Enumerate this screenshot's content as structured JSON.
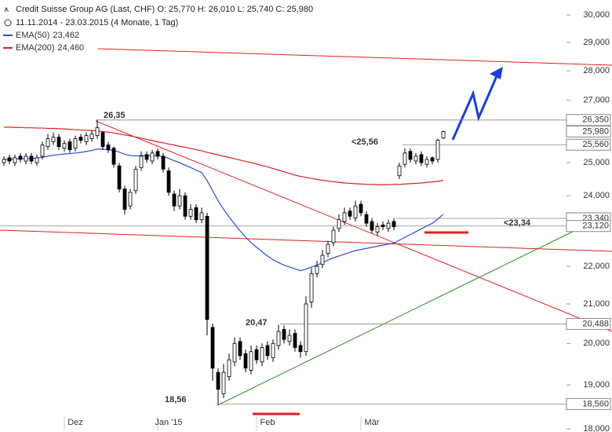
{
  "chart_data": {
    "type": "candlestick",
    "title": "Credit Suisse Group AG (Last, CHF)  O: 25,770  H: 26,010  L: 25,740  C: 25,980",
    "subtitle": "11.11.2014 - 23.03.2015 (4 Monate, 1 Tag)",
    "log_scale": true,
    "ylim": [
      18,
      30
    ],
    "yticks": [
      {
        "value": 30,
        "label": "30,000"
      },
      {
        "value": 29,
        "label": "29,000"
      },
      {
        "value": 28,
        "label": "28,000"
      },
      {
        "value": 27,
        "label": "27,000"
      },
      {
        "value": 25,
        "label": "25,000"
      },
      {
        "value": 24,
        "label": "24,000"
      },
      {
        "value": 22,
        "label": "22,000"
      },
      {
        "value": 21,
        "label": "21,000"
      },
      {
        "value": 20,
        "label": "20,000"
      },
      {
        "value": 19,
        "label": "19,000"
      },
      {
        "value": 18,
        "label": "18,000"
      }
    ],
    "categories": [
      null,
      null,
      null,
      null,
      null,
      null,
      null,
      null,
      null,
      null,
      null,
      null,
      null,
      "Dez",
      null,
      null,
      null,
      null,
      null,
      null,
      null,
      null,
      null,
      null,
      null,
      null,
      null,
      null,
      null,
      null,
      "Jan '15",
      null,
      null,
      null,
      null,
      null,
      null,
      null,
      null,
      null,
      null,
      null,
      null,
      null,
      null,
      null,
      null,
      null,
      "Feb",
      null,
      null,
      null,
      null,
      null,
      null,
      null,
      null,
      null,
      null,
      null,
      null,
      null,
      null,
      null,
      null,
      null,
      null,
      "Mär",
      null,
      null,
      null,
      null,
      null,
      null,
      null,
      null,
      null,
      null,
      null,
      null,
      null
    ],
    "open": [
      25.0,
      25.15,
      25.0,
      25.2,
      25.05,
      25.2,
      25.0,
      25.2,
      25.5,
      25.65,
      25.8,
      25.45,
      25.65,
      25.45,
      25.8,
      25.65,
      25.75,
      25.85,
      25.95,
      25.55,
      25.45,
      24.9,
      24.2,
      23.7,
      24.15,
      24.85,
      25.25,
      25.05,
      25.35,
      25.2,
      24.75,
      24.05,
      23.7,
      24.0,
      23.4,
      23.65,
      23.3,
      23.4,
      20.4,
      19.3,
      18.8,
      19.2,
      19.55,
      20.05,
      19.75,
      19.35,
      19.85,
      19.55,
      19.95,
      19.65,
      19.95,
      20.35,
      20.05,
      20.25,
      19.95,
      19.8,
      21.05,
      21.8,
      22.05,
      22.35,
      22.65,
      23.05,
      23.25,
      23.55,
      23.35,
      23.75,
      23.45,
      23.25,
      22.95,
      23.15,
      23.05,
      23.25,
      24.6,
      24.95,
      25.35,
      25.05,
      25.25,
      24.95,
      25.15,
      25.1,
      25.77
    ],
    "high": [
      25.2,
      25.25,
      25.25,
      25.3,
      25.3,
      25.3,
      25.25,
      25.65,
      25.9,
      25.95,
      25.9,
      25.7,
      25.75,
      25.85,
      25.9,
      25.95,
      26.0,
      26.35,
      26.0,
      25.65,
      25.5,
      25.0,
      24.3,
      24.2,
      24.9,
      25.35,
      25.35,
      25.4,
      25.45,
      25.3,
      24.85,
      24.15,
      24.2,
      24.1,
      23.75,
      23.75,
      23.65,
      23.5,
      20.5,
      19.4,
      19.5,
      19.75,
      20.15,
      20.15,
      19.85,
      19.95,
      19.95,
      20.0,
      20.05,
      20.1,
      20.47,
      20.45,
      20.35,
      20.35,
      20.05,
      21.2,
      21.95,
      22.15,
      22.45,
      22.7,
      23.1,
      23.45,
      23.65,
      23.65,
      23.85,
      23.85,
      23.55,
      23.35,
      23.2,
      23.25,
      23.3,
      23.35,
      25.0,
      25.45,
      25.45,
      25.3,
      25.35,
      25.2,
      25.2,
      25.75,
      26.01
    ],
    "low": [
      24.9,
      24.95,
      24.9,
      25.0,
      24.95,
      24.95,
      24.9,
      25.1,
      25.4,
      25.55,
      25.4,
      25.35,
      25.3,
      25.35,
      25.6,
      25.55,
      25.65,
      25.75,
      25.4,
      25.3,
      24.85,
      24.1,
      23.45,
      23.6,
      24.05,
      24.75,
      25.0,
      24.95,
      25.1,
      24.7,
      24.0,
      23.55,
      23.6,
      23.3,
      23.3,
      23.2,
      23.2,
      20.2,
      19.1,
      18.56,
      18.7,
      19.1,
      19.45,
      19.6,
      19.3,
      19.25,
      19.5,
      19.45,
      19.6,
      19.55,
      19.85,
      20.0,
      19.95,
      19.8,
      19.65,
      19.7,
      20.9,
      21.7,
      21.95,
      22.25,
      22.55,
      22.95,
      23.15,
      23.3,
      23.25,
      23.4,
      23.1,
      22.9,
      22.85,
      23.0,
      22.95,
      23.0,
      24.5,
      24.85,
      25.0,
      24.95,
      24.9,
      24.85,
      24.95,
      25.0,
      25.74
    ],
    "close": [
      25.1,
      25.05,
      25.15,
      25.1,
      25.2,
      25.05,
      25.15,
      25.55,
      25.75,
      25.8,
      25.5,
      25.6,
      25.4,
      25.75,
      25.7,
      25.85,
      25.9,
      26.1,
      25.5,
      25.4,
      24.95,
      24.2,
      23.6,
      24.1,
      24.8,
      25.2,
      25.1,
      25.3,
      25.2,
      24.8,
      24.1,
      23.7,
      24.0,
      23.4,
      23.6,
      23.3,
      23.5,
      20.6,
      19.4,
      18.9,
      19.3,
      19.6,
      20.0,
      19.7,
      19.4,
      19.8,
      19.6,
      19.9,
      19.7,
      20.0,
      20.3,
      20.1,
      20.2,
      19.9,
      19.8,
      21.0,
      21.8,
      22.0,
      22.3,
      22.6,
      23.0,
      23.3,
      23.5,
      23.4,
      23.7,
      23.5,
      23.2,
      23.0,
      23.1,
      23.1,
      23.2,
      23.1,
      24.9,
      25.3,
      25.1,
      25.2,
      25.0,
      25.1,
      25.05,
      25.7,
      25.98
    ],
    "series": [
      {
        "name": "EMA(50)",
        "legend_value": "23,462",
        "color": "#2a4fd8",
        "values": [
          25.1,
          25.1,
          25.12,
          25.12,
          25.13,
          25.13,
          25.14,
          25.17,
          25.2,
          25.23,
          25.25,
          25.27,
          25.28,
          25.3,
          25.32,
          25.35,
          25.38,
          25.42,
          25.42,
          25.4,
          25.38,
          25.33,
          25.26,
          25.22,
          25.21,
          25.22,
          25.22,
          25.22,
          25.21,
          25.19,
          25.13,
          25.06,
          25.0,
          24.92,
          24.85,
          24.77,
          24.7,
          24.45,
          24.15,
          23.85,
          23.6,
          23.38,
          23.18,
          22.98,
          22.8,
          22.65,
          22.52,
          22.4,
          22.28,
          22.18,
          22.1,
          22.03,
          21.98,
          21.93,
          21.88,
          21.92,
          21.98,
          22.03,
          22.1,
          22.17,
          22.23,
          22.28,
          22.33,
          22.38,
          22.43,
          22.46,
          22.49,
          22.52,
          22.55,
          22.58,
          22.61,
          22.64,
          22.72,
          22.8,
          22.88,
          22.96,
          23.04,
          23.12,
          23.2,
          23.32,
          23.46
        ]
      },
      {
        "name": "EMA(200)",
        "legend_value": "24,460",
        "color": "#e02020",
        "values": [
          26.12,
          26.12,
          26.11,
          26.11,
          26.1,
          26.1,
          26.09,
          26.09,
          26.08,
          26.08,
          26.07,
          26.06,
          26.05,
          26.04,
          26.03,
          26.02,
          26.01,
          26.0,
          25.98,
          25.96,
          25.93,
          25.9,
          25.87,
          25.84,
          25.8,
          25.77,
          25.73,
          25.69,
          25.65,
          25.62,
          25.58,
          25.55,
          25.51,
          25.48,
          25.44,
          25.4,
          25.37,
          25.32,
          25.28,
          25.24,
          25.2,
          25.16,
          25.12,
          25.08,
          25.04,
          25.0,
          24.96,
          24.91,
          24.87,
          24.82,
          24.77,
          24.72,
          24.67,
          24.62,
          24.58,
          24.55,
          24.52,
          24.49,
          24.46,
          24.44,
          24.42,
          24.4,
          24.38,
          24.37,
          24.36,
          24.35,
          24.34,
          24.34,
          24.33,
          24.33,
          24.33,
          24.34,
          24.34,
          24.35,
          24.36,
          24.37,
          24.38,
          24.4,
          24.41,
          24.43,
          24.46
        ]
      }
    ],
    "levels": [
      {
        "value": 26.35,
        "label": "26,350"
      },
      {
        "value": 25.98,
        "label": "25,980"
      },
      {
        "value": 25.56,
        "label": "25,560"
      },
      {
        "value": 23.34,
        "label": "23,340"
      },
      {
        "value": 23.12,
        "label": "23,120"
      },
      {
        "value": 20.488,
        "label": "20,488"
      },
      {
        "value": 18.56,
        "label": "18,560"
      }
    ],
    "annotations": [
      {
        "text": "26,35",
        "color": "#1a3fcf"
      },
      {
        "text": "<25,56",
        "color": "#d01818"
      },
      {
        "text": "<23,34",
        "color": "#d01818"
      },
      {
        "text": "20,47",
        "color": "#777777"
      },
      {
        "text": "18,56",
        "color": "#777777"
      }
    ]
  }
}
